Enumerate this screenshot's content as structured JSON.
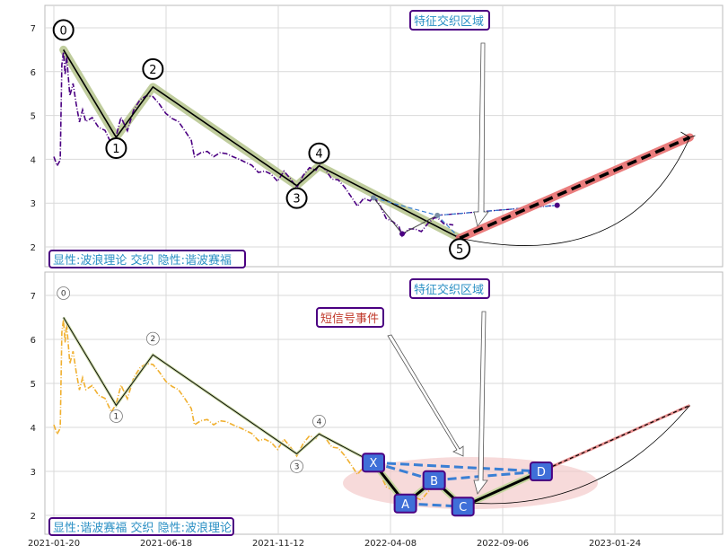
{
  "chart_data": [
    {
      "type": "line",
      "panel": "top",
      "ylim": [
        1.6,
        7.5
      ],
      "yticks": [
        "2",
        "3",
        "4",
        "5",
        "6",
        "7"
      ],
      "grid": true,
      "legend_box": {
        "text": "显性:波浪理论 交织 隐性:谐波赛福",
        "position": "bottom-left"
      },
      "region_box": {
        "text": "特征交织区域",
        "position": "top-center"
      },
      "wave_labels": [
        "0",
        "1",
        "2",
        "3",
        "4",
        "5"
      ],
      "wave_points": [
        {
          "label": "0",
          "x": 6,
          "y": 6.5
        },
        {
          "label": "1",
          "x": 39,
          "y": 4.5
        },
        {
          "label": "2",
          "x": 62,
          "y": 5.65
        },
        {
          "label": "3",
          "x": 152,
          "y": 3.4
        },
        {
          "label": "4",
          "x": 166,
          "y": 3.85
        },
        {
          "label": "5",
          "x": 254,
          "y": 2.2
        }
      ],
      "projection": {
        "from": {
          "x": 254,
          "y": 2.2
        },
        "to": {
          "x": 398,
          "y": 4.5
        }
      },
      "side_points": [
        {
          "x": 200,
          "y": 3.12
        },
        {
          "x": 218,
          "y": 2.3
        },
        {
          "x": 240,
          "y": 2.72
        },
        {
          "x": 315,
          "y": 2.95
        }
      ],
      "colors": {
        "price": "#4b0082",
        "wave": "#000000",
        "wave_glow": "#b5c48c",
        "projection": "#e87070",
        "dashed": "#3a7fd4",
        "box_border": "#4b0082",
        "box_text": "#2a8fc4"
      }
    },
    {
      "type": "line",
      "panel": "bottom",
      "ylim": [
        1.6,
        7.5
      ],
      "yticks": [
        "2",
        "3",
        "4",
        "5",
        "6",
        "7"
      ],
      "grid": true,
      "xticks": [
        "2021-01-20",
        "2021-06-18",
        "2021-11-12",
        "2022-04-08",
        "2022-09-06",
        "2023-01-24"
      ],
      "legend_box": {
        "text": "显性:谐波赛福 交织 隐性:波浪理论",
        "position": "bottom-left"
      },
      "region_box": {
        "text": "特征交织区域",
        "position": "top-center"
      },
      "signal_box": {
        "text": "短信号事件",
        "color": "#c0392b"
      },
      "wave_labels": [
        "0",
        "1",
        "2",
        "3",
        "4"
      ],
      "wave_points": [
        {
          "label": "0",
          "x": 6,
          "y": 6.5
        },
        {
          "label": "1",
          "x": 39,
          "y": 4.5
        },
        {
          "label": "2",
          "x": 62,
          "y": 5.65
        },
        {
          "label": "3",
          "x": 152,
          "y": 3.4
        },
        {
          "label": "4",
          "x": 166,
          "y": 3.85
        }
      ],
      "harmonic_points": [
        {
          "label": "X",
          "x": 200,
          "y": 3.2
        },
        {
          "label": "A",
          "x": 220,
          "y": 2.27
        },
        {
          "label": "B",
          "x": 238,
          "y": 2.8
        },
        {
          "label": "C",
          "x": 256,
          "y": 2.2
        },
        {
          "label": "D",
          "x": 305,
          "y": 3.0
        }
      ],
      "projection": {
        "from": {
          "x": 305,
          "y": 3.0
        },
        "to": {
          "x": 398,
          "y": 4.5
        }
      },
      "colors": {
        "price": "#f0b030",
        "wave": "#000000",
        "dashed": "#3a7fd4",
        "ellipse": "#f3c6c6",
        "point_fill": "#3f6fd8",
        "box_border": "#4b0082",
        "box_text": "#2a8fc4"
      }
    }
  ]
}
